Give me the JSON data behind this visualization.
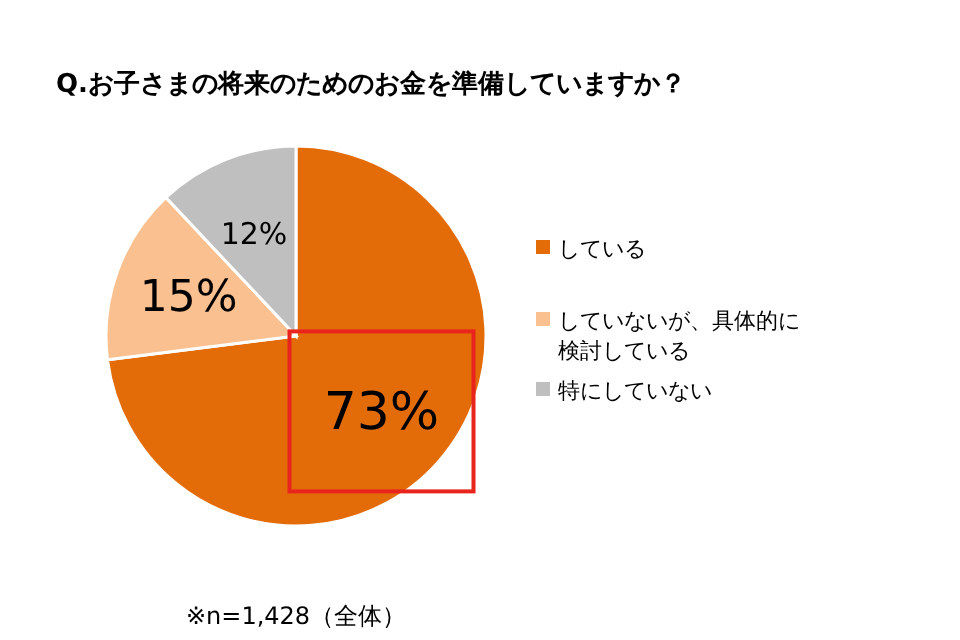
{
  "chart_data": {
    "type": "pie",
    "title": "Q.お子さまの将来のためのお金を準備していますか？",
    "categories": [
      "している",
      "していないが、具体的に検討している",
      "特にしていない"
    ],
    "values": [
      73,
      15,
      12
    ],
    "value_labels": [
      "73%",
      "15%",
      "12%"
    ],
    "colors": [
      "#e36c09",
      "#fac090",
      "#bfbfbf"
    ],
    "legend": "right",
    "annotations": [
      "※n=1,428（全体）"
    ]
  }
}
